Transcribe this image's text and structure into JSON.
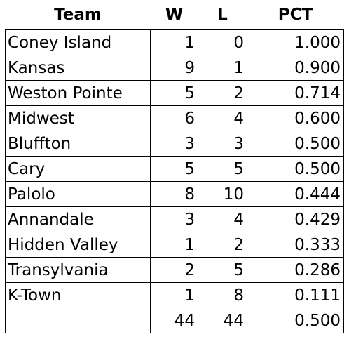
{
  "table": {
    "header": [
      "Team",
      "W",
      "L",
      "PCT"
    ],
    "rows": [
      [
        "Coney Island",
        "1",
        "0",
        "1.000"
      ],
      [
        "Kansas",
        "9",
        "1",
        "0.900"
      ],
      [
        "Weston Pointe",
        "5",
        "2",
        "0.714"
      ],
      [
        "Midwest",
        "6",
        "4",
        "0.600"
      ],
      [
        "Bluffton",
        "3",
        "3",
        "0.500"
      ],
      [
        "Cary",
        "5",
        "5",
        "0.500"
      ],
      [
        "Palolo",
        "8",
        "10",
        "0.444"
      ],
      [
        "Annandale",
        "3",
        "4",
        "0.429"
      ],
      [
        "Hidden Valley",
        "1",
        "2",
        "0.333"
      ],
      [
        "Transylvania",
        "2",
        "5",
        "0.286"
      ],
      [
        "K-Town",
        "1",
        "8",
        "0.111"
      ]
    ],
    "totals": [
      "44",
      "44",
      "0.500"
    ]
  }
}
